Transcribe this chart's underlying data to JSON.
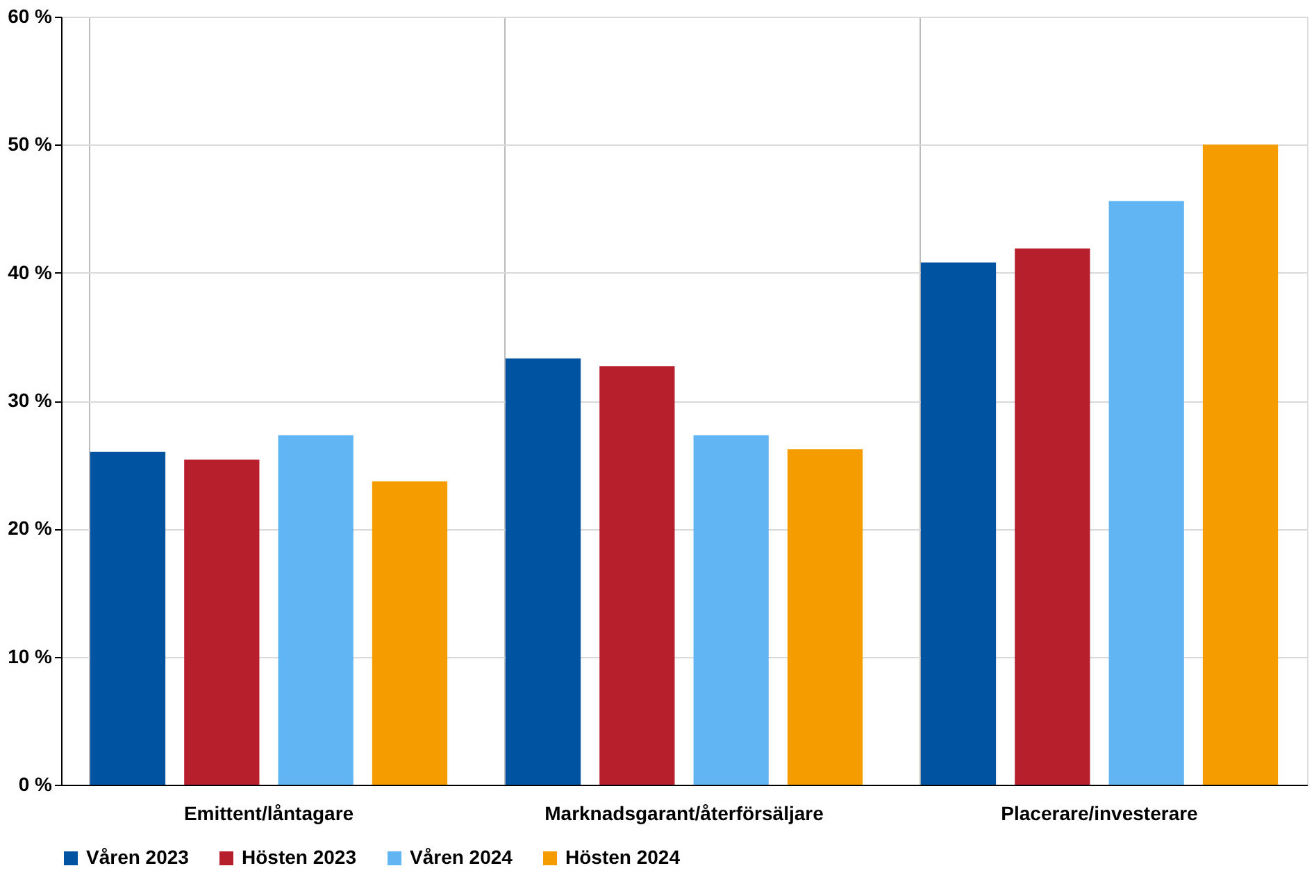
{
  "chart_data": {
    "type": "bar",
    "categories": [
      "Emittent/låntagare",
      "Marknadsgarant/återförsäljare",
      "Placerare/investerare"
    ],
    "series": [
      {
        "name": "Våren 2023",
        "color": "#0053a0",
        "values": [
          26.0,
          33.3,
          40.8
        ]
      },
      {
        "name": "Hösten 2023",
        "color": "#b81f2d",
        "values": [
          25.4,
          32.7,
          41.9
        ]
      },
      {
        "name": "Våren 2024",
        "color": "#62b5f3",
        "values": [
          27.3,
          27.3,
          45.6
        ]
      },
      {
        "name": "Hösten 2024",
        "color": "#f59c00",
        "values": [
          23.7,
          26.2,
          50.0
        ]
      }
    ],
    "ylim": [
      0,
      60
    ],
    "yticks": [
      {
        "value": 0,
        "label": "0 %"
      },
      {
        "value": 10,
        "label": "10 %"
      },
      {
        "value": 20,
        "label": "20 %"
      },
      {
        "value": 30,
        "label": "30 %"
      },
      {
        "value": 40,
        "label": "40 %"
      },
      {
        "value": 50,
        "label": "50 %"
      },
      {
        "value": 60,
        "label": "60 %"
      }
    ],
    "grid": true,
    "legend": "bottom"
  }
}
